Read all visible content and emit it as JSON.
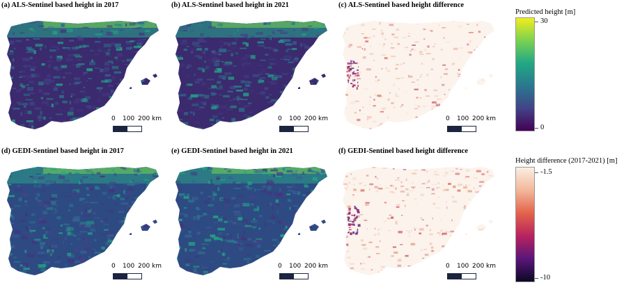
{
  "panels": [
    {
      "title": "(a) ALS-Sentinel based height in 2017",
      "kind": "height"
    },
    {
      "title": "(b) ALS-Sentinel based height in 2021",
      "kind": "height"
    },
    {
      "title": "(c) ALS-Sentinel based height difference",
      "kind": "diff"
    },
    {
      "title": "(d) GEDI-Sentinel based height in 2017",
      "kind": "height"
    },
    {
      "title": "(e) GEDI-Sentinel based height in 2021",
      "kind": "height"
    },
    {
      "title": "(f) GEDI-Sentinel based height difference",
      "kind": "diff"
    }
  ],
  "scale_bar": {
    "labels": [
      "0",
      "100",
      "200 km"
    ]
  },
  "legend_height": {
    "title": "Predicted height [m]",
    "max": "30",
    "min": "0",
    "colors": [
      "#f2ed1d",
      "#7ad151",
      "#22a884",
      "#2a788e",
      "#414487",
      "#440154"
    ]
  },
  "legend_diff": {
    "title": "Height difference (2017-2021) [m]",
    "max": "-1.5",
    "min": "-10",
    "colors": [
      "#faeee2",
      "#f3b79a",
      "#e3634a",
      "#b8235e",
      "#5a167a",
      "#0b0824"
    ]
  }
}
